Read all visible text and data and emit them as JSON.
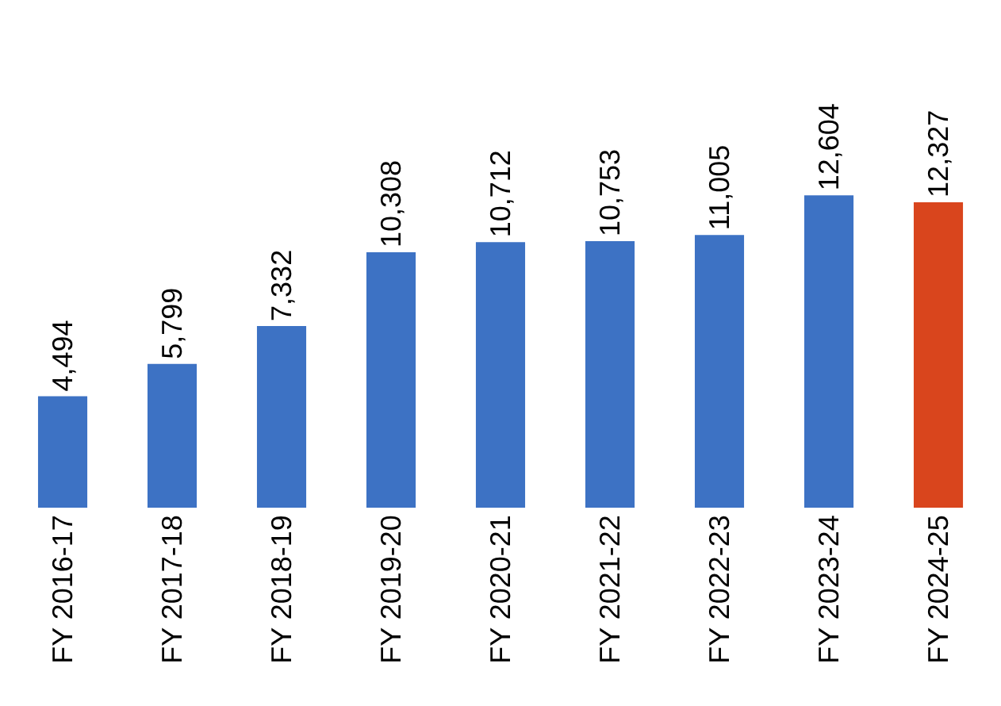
{
  "chart_data": {
    "type": "bar",
    "categories": [
      "FY 2016-17",
      "FY 2017-18",
      "FY 2018-19",
      "FY 2019-20",
      "FY 2020-21",
      "FY 2021-22",
      "FY 2022-23",
      "FY 2023-24",
      "FY 2024-25"
    ],
    "values": [
      4494,
      5799,
      7332,
      10308,
      10712,
      10753,
      11005,
      12604,
      12327
    ],
    "colors": [
      "#3d72c4",
      "#3d72c4",
      "#3d72c4",
      "#3d72c4",
      "#3d72c4",
      "#3d72c4",
      "#3d72c4",
      "#3d72c4",
      "#d9451d"
    ],
    "value_labels": [
      "4,494",
      "5,799",
      "7,332",
      "10,308",
      "10,712",
      "10,753",
      "11,005",
      "12,604",
      "12,327"
    ],
    "legend": false
  }
}
